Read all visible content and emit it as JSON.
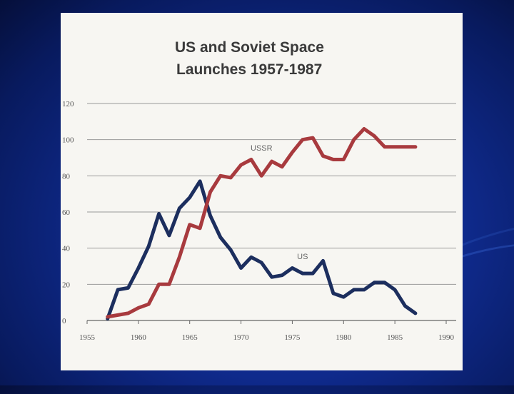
{
  "chart_data": {
    "type": "line",
    "title": [
      "US and Soviet Space",
      "Launches 1957-1987"
    ],
    "xlabel": "",
    "ylabel": "",
    "xlim": [
      1955,
      1990
    ],
    "ylim": [
      0,
      120
    ],
    "x_ticks": [
      1955,
      1960,
      1965,
      1970,
      1975,
      1980,
      1985,
      1990
    ],
    "y_ticks": [
      0,
      20,
      40,
      60,
      80,
      100,
      120
    ],
    "grid": true,
    "x": [
      1957,
      1958,
      1959,
      1960,
      1961,
      1962,
      1963,
      1964,
      1965,
      1966,
      1967,
      1968,
      1969,
      1970,
      1971,
      1972,
      1973,
      1974,
      1975,
      1976,
      1977,
      1978,
      1979,
      1980,
      1981,
      1982,
      1983,
      1984,
      1985,
      1986,
      1987
    ],
    "series": [
      {
        "name": "US",
        "color": "#1c2e5e",
        "label_at": [
          1976,
          34
        ],
        "values": [
          1,
          17,
          18,
          29,
          41,
          59,
          47,
          62,
          68,
          77,
          58,
          46,
          39,
          29,
          35,
          32,
          24,
          25,
          29,
          26,
          26,
          33,
          15,
          13,
          17,
          17,
          21,
          21,
          17,
          8,
          4
        ]
      },
      {
        "name": "USSR",
        "color": "#a83a3e",
        "label_at": [
          1972,
          94
        ],
        "values": [
          2,
          3,
          4,
          7,
          9,
          20,
          20,
          35,
          53,
          51,
          71,
          80,
          79,
          86,
          89,
          80,
          88,
          85,
          93,
          100,
          101,
          91,
          89,
          89,
          100,
          106,
          102,
          96,
          96,
          96,
          96
        ]
      }
    ]
  }
}
